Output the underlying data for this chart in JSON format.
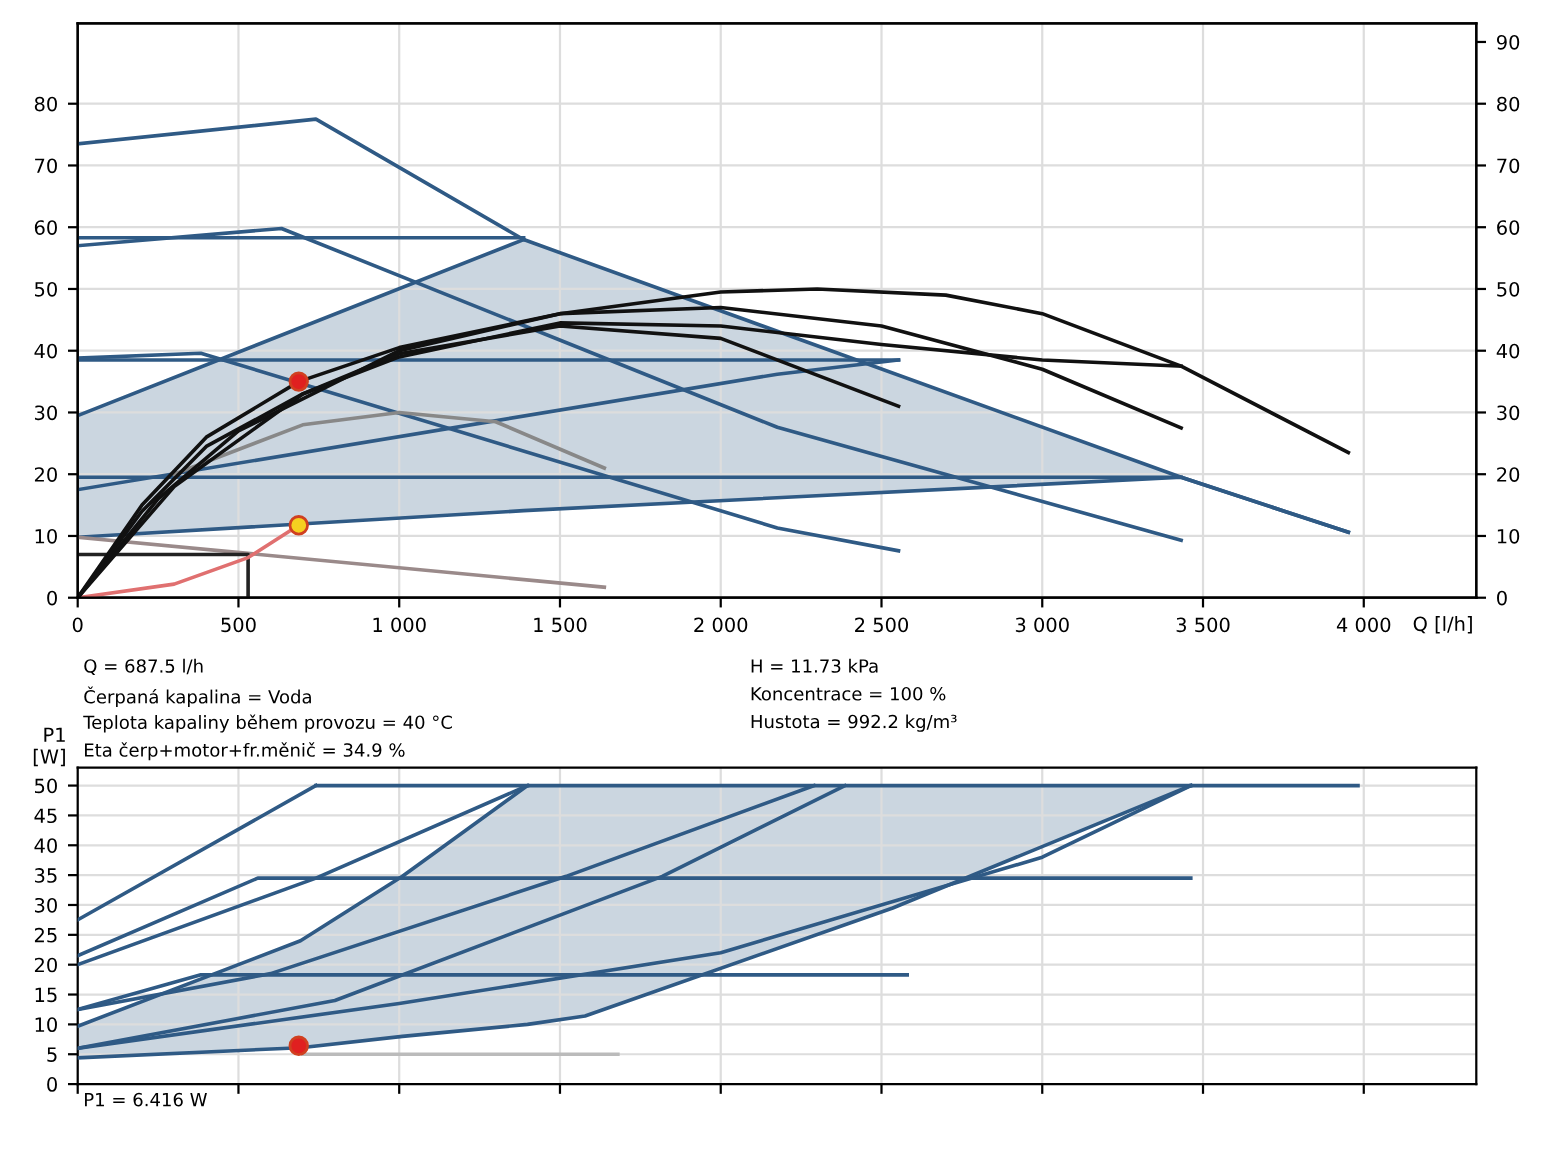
{
  "chart_data": [
    {
      "type": "line",
      "xlabel": "Q [l/h]",
      "xlim": [
        0,
        4350
      ],
      "ylim": [
        0,
        93
      ],
      "y2lim": [
        0,
        93
      ],
      "xticks": [
        0,
        {
          "value": 500,
          "label": "500"
        },
        {
          "value": 1000,
          "label": "1 000"
        },
        {
          "value": 1500,
          "label": "1 500"
        },
        {
          "value": 2000,
          "label": "2 000"
        },
        {
          "value": 2500,
          "label": "2 500"
        },
        {
          "value": 3000,
          "label": "3 000"
        },
        {
          "value": 3500,
          "label": "3 500"
        },
        {
          "value": 4000,
          "label": "4 000"
        }
      ],
      "yticks": [
        0,
        10,
        20,
        30,
        40,
        50,
        60,
        70,
        80
      ],
      "y2ticks": [
        0,
        10,
        20,
        30,
        40,
        50,
        60,
        70,
        80,
        90
      ],
      "grid": true,
      "series": [
        {
          "color": "#2f5a85",
          "x": [
            0,
            1387,
            3432,
            3952
          ],
          "values": [
            9.8,
            14.1,
            19.5,
            10.6
          ],
          "lower": [
            9.8,
            14.1,
            19.5,
            10.6
          ],
          "upper": [
            29.5,
            58,
            19.5,
            10.6
          ]
        },
        {
          "color": "#2f5a85",
          "x": [
            0,
            1387,
            3432,
            3952
          ],
          "values": [
            29.5,
            58,
            19.5,
            10.6
          ]
        },
        {
          "color": "#2f5a85",
          "x": [
            0,
            741,
            1387
          ],
          "values": [
            73.5,
            77.5,
            58
          ]
        },
        {
          "color": "#2f5a85",
          "x": [
            0,
            634,
            2176,
            3432
          ],
          "values": [
            57,
            59.8,
            27.6,
            9.3
          ]
        },
        {
          "color": "#2f5a85",
          "x": [
            0,
            1387
          ],
          "values": [
            58.3,
            58.3
          ]
        },
        {
          "color": "#2f5a85",
          "x": [
            0,
            2553
          ],
          "values": [
            38.5,
            38.5
          ]
        },
        {
          "color": "#2f5a85",
          "x": [
            0,
            383,
            2176,
            2553
          ],
          "values": [
            38.8,
            39.6,
            11.3,
            7.6
          ]
        },
        {
          "color": "#2f5a85",
          "x": [
            0,
            2176,
            2553
          ],
          "values": [
            17.5,
            36.2,
            38.5
          ]
        },
        {
          "color": "#2f5a85",
          "x": [
            0,
            3432
          ],
          "values": [
            19.5,
            19.5
          ]
        },
        {
          "color": "#9a8a8a",
          "x": [
            0,
            1638
          ],
          "values": [
            9.8,
            1.7
          ]
        },
        {
          "color": "#222222",
          "x": [
            0,
            530,
            530
          ],
          "values": [
            7,
            7,
            0
          ]
        },
        {
          "color": "#e07070",
          "x": [
            0,
            300,
            530,
            687.5
          ],
          "values": [
            0,
            2.2,
            6.5,
            11.73
          ]
        },
        {
          "color": "#888888",
          "x": [
            300,
            700,
            1000,
            1300,
            1638
          ],
          "values": [
            20,
            28,
            30,
            28.5,
            21
          ]
        },
        {
          "color": "#111111",
          "x": [
            0,
            200,
            400,
            687.5,
            1000,
            1500,
            2000,
            2300,
            2700,
            3000,
            3432,
            3952
          ],
          "values": [
            0,
            15,
            26,
            35,
            40.5,
            46,
            49.5,
            50,
            49,
            46,
            37.5,
            23.5
          ]
        },
        {
          "color": "#111111",
          "x": [
            0,
            200,
            400,
            700,
            1000,
            1500,
            2000,
            2500,
            3000,
            3432
          ],
          "values": [
            0,
            14,
            24.5,
            33,
            39,
            44.5,
            44,
            41,
            38.5,
            37.5
          ]
        },
        {
          "color": "#111111",
          "x": [
            0,
            250,
            500,
            1000,
            1500,
            2000,
            2500,
            3000,
            3432
          ],
          "values": [
            0,
            16,
            27,
            40,
            46,
            47,
            44,
            37,
            27.5
          ]
        },
        {
          "color": "#111111",
          "x": [
            0,
            300,
            700,
            1000,
            1500,
            2000,
            2553
          ],
          "values": [
            0,
            18,
            33,
            39.5,
            44,
            42,
            31
          ]
        },
        {
          "type": "scatter",
          "color": "#e02020",
          "x": [
            687.5
          ],
          "values": [
            35
          ]
        },
        {
          "type": "scatter",
          "color": "#f5d020",
          "x": [
            687.5
          ],
          "values": [
            11.73
          ]
        }
      ],
      "annotations": [
        "Q = 687.5 l/h",
        "H = 11.73 kPa",
        "Čerpaná kapalina = Voda",
        "Koncentrace = 100 %",
        "Teplota kapaliny během provozu = 40 °C",
        "Hustota = 992.2 kg/m³",
        "Eta čerp+motor+fr.měnič = 34.9 %"
      ]
    },
    {
      "type": "line",
      "ylabel": "P1\n[W]",
      "xlim": [
        0,
        4350
      ],
      "ylim": [
        0,
        53
      ],
      "tick_labels": "y",
      "xticks": [
        {
          "value": 0,
          "label": null
        },
        {
          "value": 500,
          "label": null
        },
        {
          "value": 1000,
          "label": null
        },
        {
          "value": 1500,
          "label": null
        },
        {
          "value": 2000,
          "label": null
        },
        {
          "value": 2500,
          "label": null
        },
        {
          "value": 3000,
          "label": null
        },
        {
          "value": 3500,
          "label": null
        },
        {
          "value": 4000,
          "label": null
        }
      ],
      "yticks": [
        0,
        5,
        10,
        15,
        20,
        25,
        30,
        35,
        40,
        45,
        50
      ],
      "grid": true,
      "series": [
        {
          "color": "#2f5a85",
          "x": [
            0,
            693,
            1010,
            1399,
            1578,
            2535,
            3462
          ],
          "values": [
            4.4,
            6.1,
            8,
            10,
            11.4,
            29.5,
            50
          ],
          "lower": [
            4.4,
            6.1,
            8,
            10,
            11.4,
            29.5,
            50
          ],
          "upper": [
            9.7,
            24,
            34.8,
            50,
            50,
            50,
            50
          ]
        },
        {
          "color": "#2f5a85",
          "x": [
            0,
            693,
            1010,
            1399,
            3462
          ],
          "values": [
            9.7,
            24,
            34.8,
            50,
            50
          ]
        },
        {
          "color": "#2f5a85",
          "x": [
            0,
            1000,
            2000,
            3000,
            3462
          ],
          "values": [
            6,
            13.5,
            22,
            38,
            50
          ]
        },
        {
          "color": "#2f5a85",
          "x": [
            0,
            600,
            1519,
            2290
          ],
          "values": [
            12.5,
            18.5,
            34.8,
            50
          ]
        },
        {
          "color": "#2f5a85",
          "x": [
            0,
            800,
            1818,
            2386
          ],
          "values": [
            6,
            14,
            34.8,
            50
          ]
        },
        {
          "color": "#2f5a85",
          "x": [
            0,
            741
          ],
          "values": [
            27.5,
            50
          ]
        },
        {
          "color": "#2f5a85",
          "x": [
            0,
            741,
            1399
          ],
          "values": [
            20,
            34.5,
            50
          ]
        },
        {
          "color": "#2f5a85",
          "x": [
            0,
            560,
            3462
          ],
          "values": [
            21.5,
            34.5,
            34.5
          ]
        },
        {
          "color": "#2f5a85",
          "x": [
            0,
            383,
            2580
          ],
          "values": [
            12.5,
            18.3,
            18.3
          ]
        },
        {
          "color": "#2f5a85",
          "x": [
            741,
            1399,
            2400,
            3462,
            3982
          ],
          "values": [
            50,
            50,
            null,
            50,
            50
          ]
        },
        {
          "color": "#bbbbbb",
          "x": [
            700,
            1680
          ],
          "values": [
            5,
            5
          ]
        },
        {
          "type": "scatter",
          "color": "#e02020",
          "x": [
            687.5
          ],
          "values": [
            6.416
          ]
        }
      ],
      "annotations": [
        "P1 = 6.416 W"
      ]
    }
  ]
}
